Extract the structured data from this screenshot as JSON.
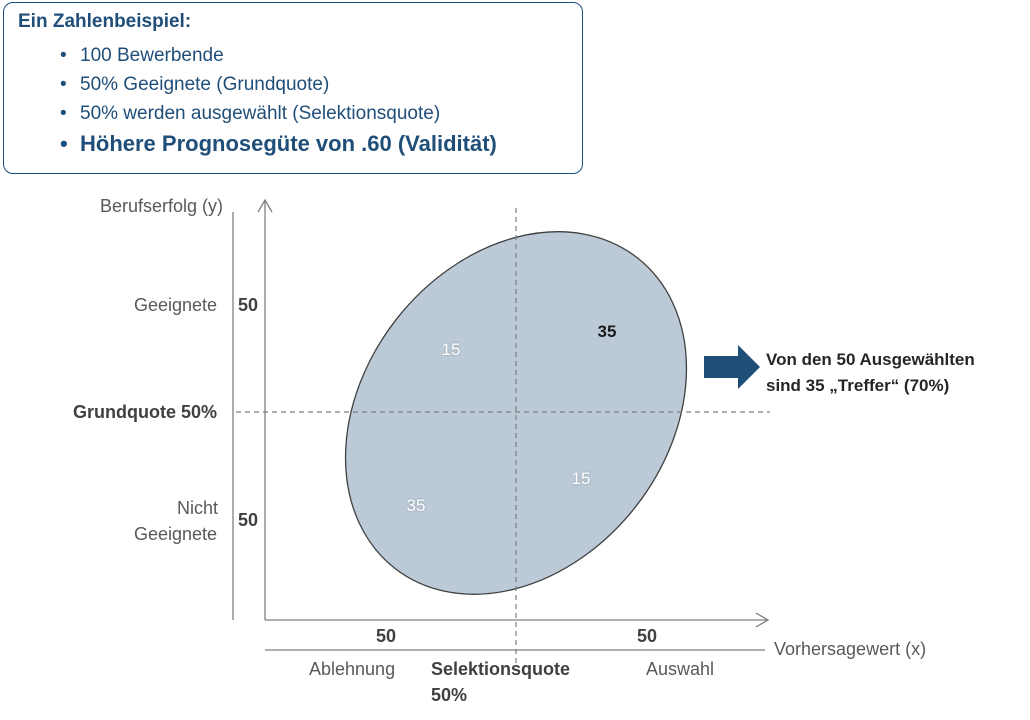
{
  "infobox": {
    "title": "Ein Zahlenbeispiel:",
    "bullets": [
      "100 Bewerbende",
      "50% Geeignete (Grundquote)",
      "50% werden ausgewählt (Selektionsquote)",
      "Höhere Prognosegüte von .60 (Validität)"
    ]
  },
  "y_axis": {
    "label": "Berufserfolg (y)",
    "upper_category": "Geeignete",
    "upper_count": "50",
    "threshold_label": "Grundquote 50%",
    "lower_category_line1": "Nicht",
    "lower_category_line2": "Geeignete",
    "lower_count": "50"
  },
  "x_axis": {
    "label": "Vorhersagewert (x)",
    "left_count": "50",
    "right_count": "50",
    "left_category": "Ablehnung",
    "threshold_label_line1": "Selektionsquote",
    "threshold_label_line2": "50%",
    "right_category": "Auswahl"
  },
  "quadrants": {
    "top_left": "15",
    "top_right": "35",
    "bottom_left": "35",
    "bottom_right": "15"
  },
  "result_note": {
    "line1": "Von den 50 Ausgewählten",
    "line2": "sind 35 „Treffer“ (70%)"
  },
  "colors": {
    "ellipse_fill": "#bccad8",
    "ellipse_stroke": "#404040",
    "box_border": "#1f4e79",
    "arrow": "#1f4e79"
  }
}
